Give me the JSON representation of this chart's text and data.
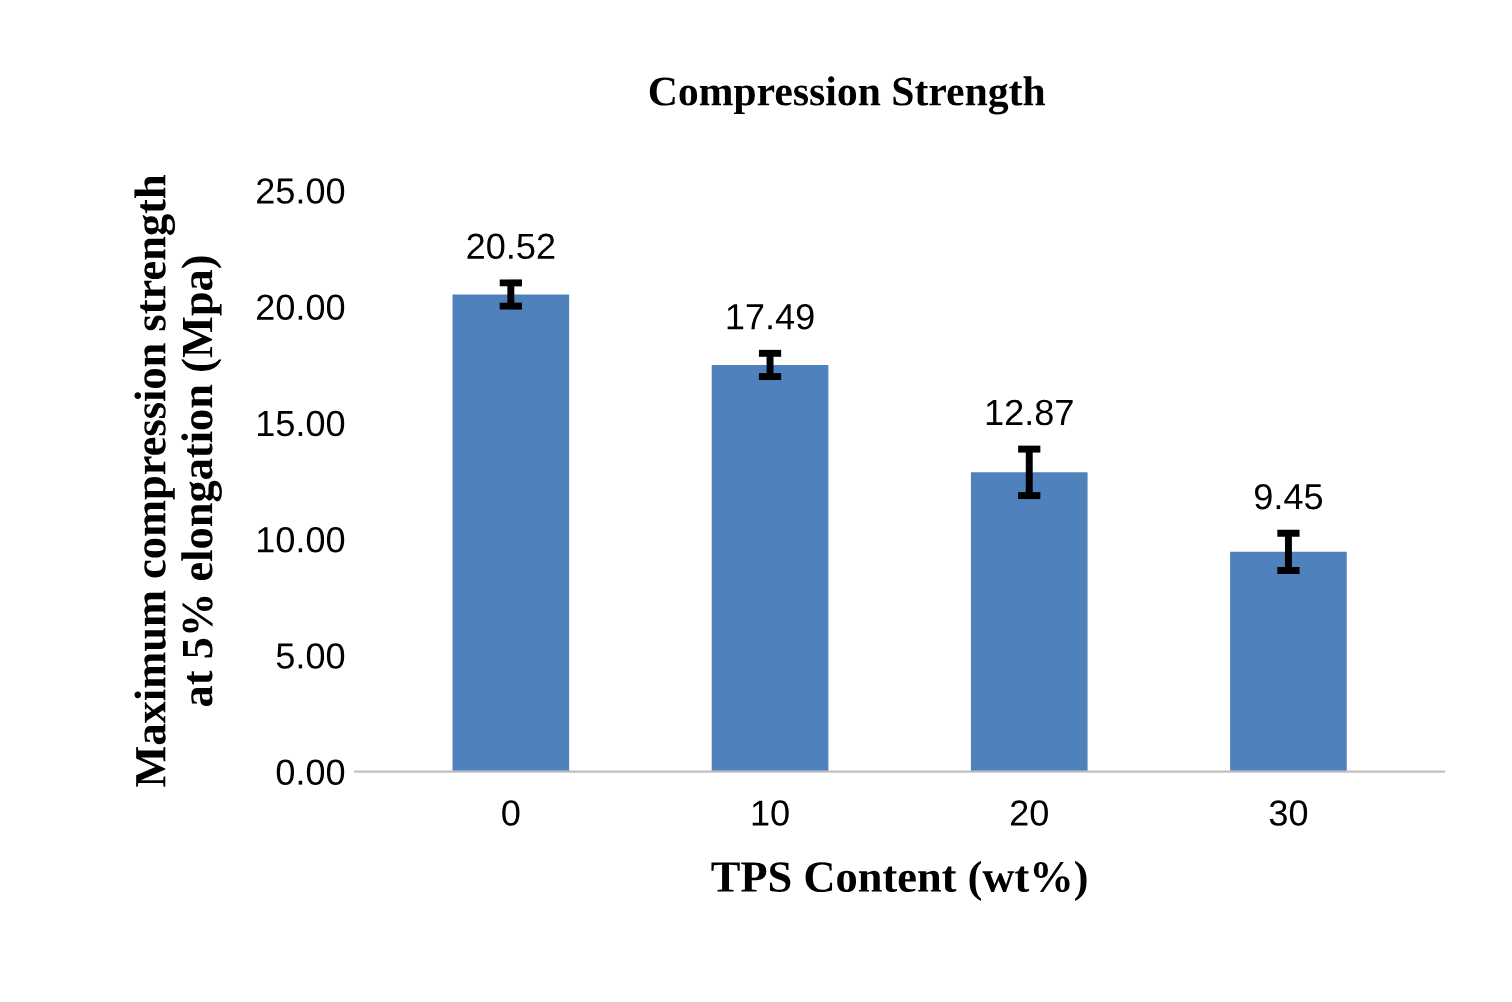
{
  "chart_data": {
    "type": "bar",
    "title": "Compression Strength",
    "xlabel": "TPS Content (wt%)",
    "ylabel": "Maximum compression strength\nat 5% elongation (Mpa)",
    "categories": [
      "0",
      "10",
      "20",
      "30"
    ],
    "values": [
      20.52,
      17.49,
      12.87,
      9.45
    ],
    "errors": [
      0.5,
      0.5,
      1.0,
      0.8
    ],
    "color": "#4f81bd",
    "data_labels": true,
    "ylim": [
      0,
      25
    ],
    "yticks": [
      {
        "value": 0,
        "label": "0.00"
      },
      {
        "value": 5,
        "label": "5.00"
      },
      {
        "value": 10,
        "label": "10.00"
      },
      {
        "value": 15,
        "label": "15.00"
      },
      {
        "value": 20,
        "label": "20.00"
      },
      {
        "value": 25,
        "label": "25.00"
      }
    ],
    "grid": false
  }
}
